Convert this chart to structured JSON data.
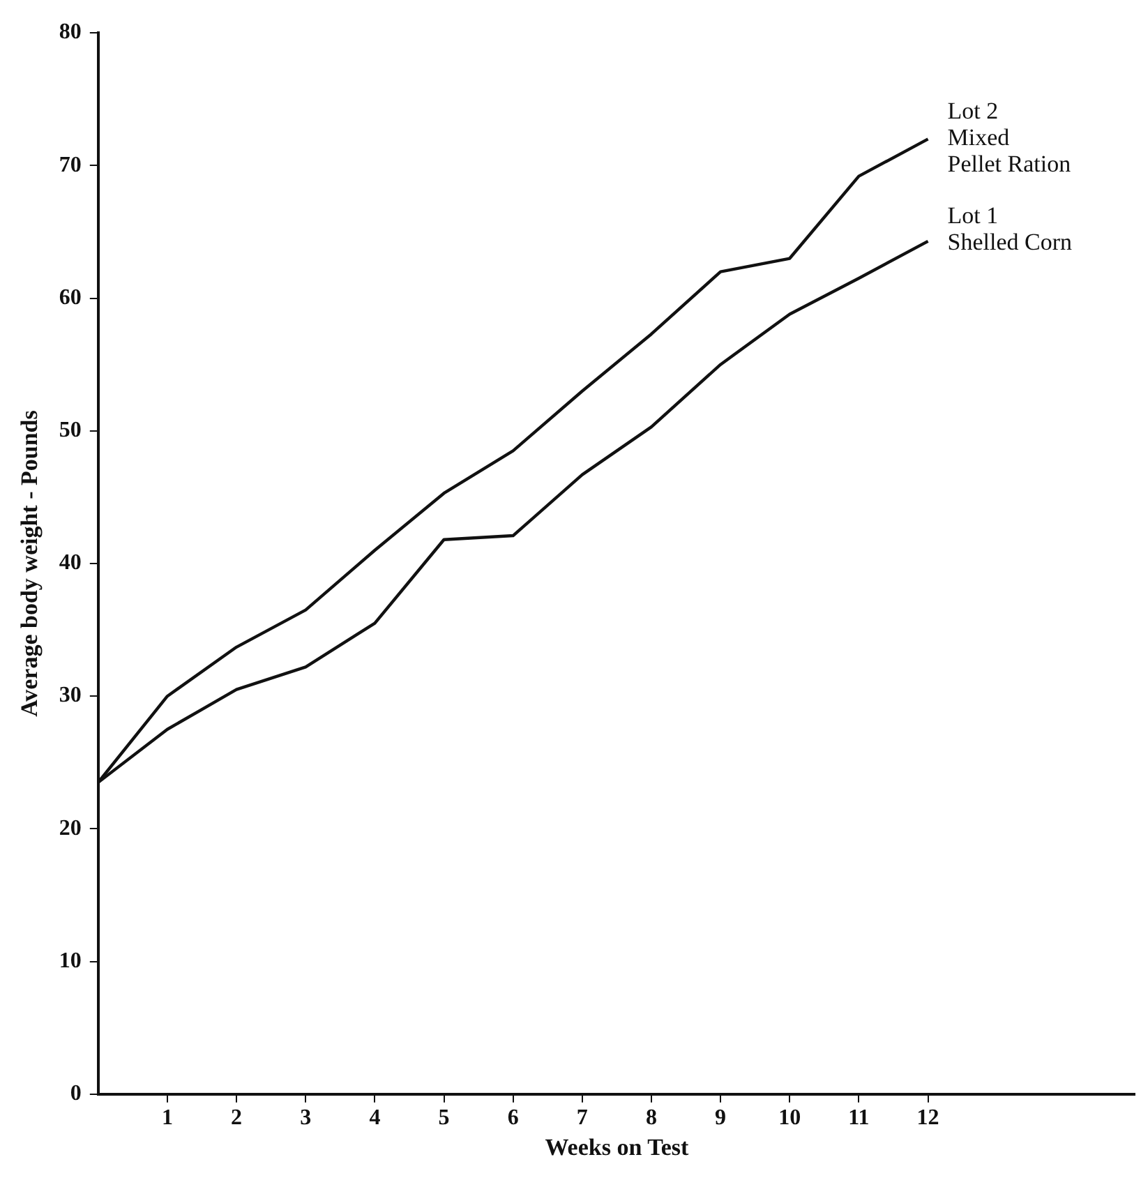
{
  "chart_data": {
    "type": "line",
    "xlabel": "Weeks on Test",
    "ylabel": "Average body weight - Pounds",
    "x": [
      0,
      1,
      2,
      3,
      4,
      5,
      6,
      7,
      8,
      9,
      10,
      11,
      12
    ],
    "series": [
      {
        "name": "Lot 2\nMixed\nPellet Ration",
        "color": "#111111",
        "values": [
          23.5,
          30,
          33.7,
          36.5,
          41,
          45.3,
          48.5,
          53,
          57.3,
          62,
          63,
          69.2,
          72
        ]
      },
      {
        "name": "Lot 1\nShelled Corn",
        "color": "#111111",
        "values": [
          23.5,
          27.5,
          30.5,
          32.2,
          35.5,
          41.8,
          42.1,
          46.7,
          50.3,
          55,
          58.8,
          61.5,
          64.3
        ]
      }
    ],
    "xlim": [
      0,
      15
    ],
    "xticks": [
      1,
      2,
      3,
      4,
      5,
      6,
      7,
      8,
      9,
      10,
      11,
      12
    ],
    "ylim": [
      0,
      80
    ],
    "yticks": [
      0,
      10,
      20,
      30,
      40,
      50,
      60,
      70,
      80
    ],
    "grid": false,
    "legend": false,
    "marker": "none",
    "line_style": "solid"
  }
}
